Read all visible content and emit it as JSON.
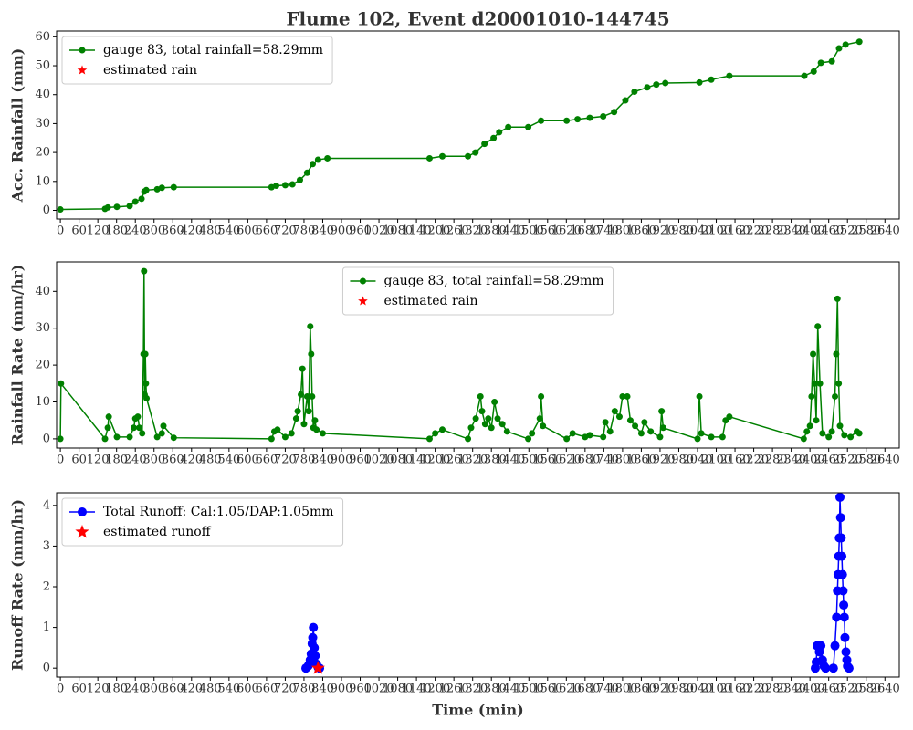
{
  "chart_data": [
    {
      "type": "line",
      "title": "Flume 102, Event d20001010-144745",
      "ylabel": "Acc. Rainfall (mm)",
      "legend": "upper left",
      "xlim": [
        -12,
        2686
      ],
      "ylim": [
        -3,
        62
      ],
      "xticks": [
        0,
        60,
        120,
        180,
        240,
        300,
        360,
        420,
        480,
        540,
        600,
        660,
        720,
        780,
        840,
        900,
        960,
        1020,
        1080,
        1140,
        1200,
        1260,
        1320,
        1380,
        1440,
        1500,
        1560,
        1620,
        1680,
        1740,
        1800,
        1860,
        1920,
        1980,
        2040,
        2100,
        2160,
        2220,
        2280,
        2340,
        2400,
        2460,
        2520,
        2580,
        2640
      ],
      "yticks": [
        0,
        10,
        20,
        30,
        40,
        50,
        60
      ],
      "series": [
        {
          "name": "gauge 83, total rainfall=58.29mm",
          "color": "#008000",
          "marker": "o",
          "line": true,
          "x": [
            0,
            143,
            152,
            181,
            222,
            240,
            260,
            269,
            275,
            310,
            325,
            363,
            676,
            691,
            720,
            743,
            767,
            790,
            808,
            825,
            855,
            1182,
            1223,
            1305,
            1329,
            1358,
            1387,
            1405,
            1434,
            1498,
            1539,
            1621,
            1656,
            1695,
            1738,
            1773,
            1809,
            1838,
            1879,
            1908,
            1937,
            2046,
            2084,
            2142,
            2382,
            2412,
            2435,
            2470,
            2493,
            2514,
            2558
          ],
          "values": [
            0.3,
            0.5,
            1,
            1.2,
            1.5,
            3,
            4,
            6.5,
            7,
            7.3,
            7.8,
            8,
            8,
            8.5,
            8.7,
            9,
            10.5,
            13,
            16,
            17.5,
            18,
            18,
            18.7,
            18.7,
            20,
            23,
            25,
            27,
            28.8,
            28.8,
            31,
            31,
            31.5,
            32,
            32.5,
            34,
            38,
            41,
            42.5,
            43.5,
            44,
            44.2,
            45.2,
            46.5,
            46.5,
            48,
            51,
            51.5,
            56,
            57.3,
            58.3
          ]
        },
        {
          "name": "estimated rain",
          "color": "#ff0000",
          "marker": "*",
          "line": false,
          "x": [],
          "values": []
        }
      ]
    },
    {
      "type": "line",
      "ylabel": "Rainfall Rate (mm/hr)",
      "legend": "upper center",
      "xlim": [
        -12,
        2686
      ],
      "ylim": [
        -2.5,
        48
      ],
      "xticks": [
        0,
        60,
        120,
        180,
        240,
        300,
        360,
        420,
        480,
        540,
        600,
        660,
        720,
        780,
        840,
        900,
        960,
        1020,
        1080,
        1140,
        1200,
        1260,
        1320,
        1380,
        1440,
        1500,
        1560,
        1620,
        1680,
        1740,
        1800,
        1860,
        1920,
        1980,
        2040,
        2100,
        2160,
        2220,
        2280,
        2340,
        2400,
        2460,
        2520,
        2580,
        2640
      ],
      "yticks": [
        0,
        10,
        20,
        30,
        40
      ],
      "series": [
        {
          "name": "gauge 83, total rainfall=58.29mm",
          "color": "#008000",
          "marker": "o",
          "line": true,
          "x": [
            0,
            2,
            143,
            152,
            155,
            181,
            222,
            235,
            240,
            248,
            253,
            262,
            266,
            268,
            270,
            272,
            274,
            276,
            310,
            325,
            330,
            363,
            676,
            685,
            695,
            720,
            740,
            755,
            760,
            770,
            775,
            780,
            790,
            795,
            800,
            803,
            806,
            810,
            815,
            820,
            840,
            1182,
            1200,
            1223,
            1305,
            1315,
            1330,
            1345,
            1350,
            1360,
            1370,
            1380,
            1390,
            1400,
            1415,
            1430,
            1498,
            1510,
            1535,
            1539,
            1545,
            1621,
            1640,
            1680,
            1695,
            1738,
            1745,
            1760,
            1775,
            1790,
            1800,
            1815,
            1825,
            1840,
            1860,
            1870,
            1890,
            1920,
            1925,
            1930,
            2040,
            2046,
            2052,
            2084,
            2120,
            2130,
            2142,
            2380,
            2390,
            2400,
            2405,
            2410,
            2415,
            2420,
            2425,
            2432,
            2440,
            2460,
            2470,
            2480,
            2484,
            2488,
            2492,
            2496,
            2510,
            2530,
            2550,
            2558
          ],
          "values": [
            0,
            15,
            0,
            3,
            6,
            0.5,
            0.5,
            3,
            5.5,
            6,
            3,
            1.5,
            23,
            45.5,
            12,
            23,
            15,
            11,
            0.5,
            1.5,
            3.5,
            0.3,
            0,
            2,
            2.5,
            0.5,
            1.5,
            5.5,
            7.5,
            12,
            19,
            4,
            11.5,
            7.5,
            30.5,
            23,
            11.5,
            3,
            5,
            2.5,
            1.5,
            0,
            1.5,
            2.5,
            0,
            3,
            5.5,
            11.5,
            7.5,
            4,
            5.5,
            3,
            10,
            5.5,
            4,
            2,
            0,
            1.5,
            5.5,
            11.5,
            3.5,
            0,
            1.5,
            0.5,
            1,
            0.5,
            4.5,
            2,
            7.5,
            6,
            11.5,
            11.5,
            5,
            3.5,
            1.5,
            4.5,
            2,
            0.5,
            7.5,
            3,
            0,
            11.5,
            1.5,
            0.5,
            0.5,
            5,
            6,
            0,
            2,
            3.5,
            11.5,
            23,
            15,
            5,
            30.5,
            15,
            1.5,
            0.5,
            2,
            11.5,
            23,
            38,
            15,
            3.5,
            1,
            0.5,
            2,
            1.5
          ]
        },
        {
          "name": "estimated rain",
          "color": "#ff0000",
          "marker": "*",
          "line": false,
          "x": [],
          "values": []
        }
      ]
    },
    {
      "type": "line",
      "ylabel": "Runoff Rate (mm/hr)",
      "xlabel": "Time (min)",
      "legend": "upper left",
      "xlim": [
        -12,
        2686
      ],
      "ylim": [
        -0.22,
        4.31
      ],
      "xticks": [
        0,
        60,
        120,
        180,
        240,
        300,
        360,
        420,
        480,
        540,
        600,
        660,
        720,
        780,
        840,
        900,
        960,
        1020,
        1080,
        1140,
        1200,
        1260,
        1320,
        1380,
        1440,
        1500,
        1560,
        1620,
        1680,
        1740,
        1800,
        1860,
        1920,
        1980,
        2040,
        2100,
        2160,
        2220,
        2280,
        2340,
        2400,
        2460,
        2520,
        2580,
        2640
      ],
      "yticks": [
        0,
        1,
        2,
        3,
        4
      ],
      "series": [
        {
          "name": "Total Runoff: Cal:1.05/DAP:1.05mm",
          "color": "#0000ff",
          "marker": "o",
          "line": true,
          "x": [
            786,
            793,
            797,
            800,
            803,
            806,
            808,
            810,
            813,
            816,
            820,
            825,
            830,
            1620,
            2417,
            2420,
            2423,
            2430,
            2435,
            2440,
            2445,
            2450,
            2475,
            2480,
            2485,
            2488,
            2490,
            2492,
            2494,
            2496,
            2498,
            2500,
            2502,
            2504,
            2506,
            2508,
            2510,
            2512,
            2515,
            2518,
            2520,
            2525
          ],
          "values": [
            0,
            0.05,
            0.1,
            0.2,
            0.35,
            0.6,
            0.75,
            1,
            0.5,
            0.3,
            0.1,
            0.02,
            0,
            null,
            0,
            0.15,
            0.55,
            0.4,
            0.55,
            0.2,
            0.05,
            0,
            0,
            0.55,
            1.25,
            1.9,
            2.3,
            2.75,
            3.2,
            4.2,
            3.7,
            3.2,
            2.75,
            2.3,
            1.9,
            1.55,
            1.25,
            0.75,
            0.4,
            0.2,
            0.05,
            0
          ]
        },
        {
          "name": "estimated runoff",
          "color": "#ff0000",
          "marker": "*",
          "line": false,
          "x": [
            825
          ],
          "values": [
            0
          ]
        }
      ]
    }
  ]
}
